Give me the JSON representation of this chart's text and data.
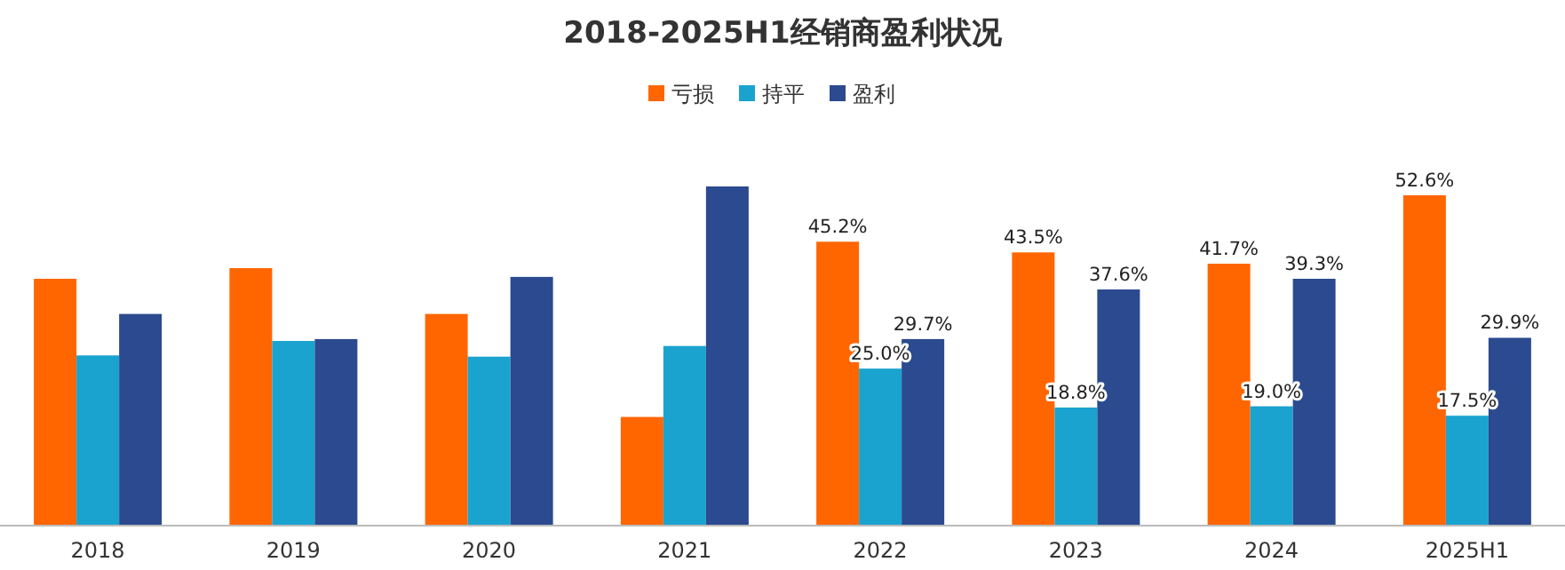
{
  "chart_data": {
    "type": "bar",
    "title": "2018-2025H1经销商盈利状况",
    "categories": [
      "2018",
      "2019",
      "2020",
      "2021",
      "2022",
      "2023",
      "2024",
      "2025H1"
    ],
    "legend": "top",
    "series": [
      {
        "name": "亏损",
        "color": "#ff6600",
        "values": [
          39.3,
          41.0,
          33.7,
          17.3,
          45.2,
          43.5,
          41.7,
          52.6
        ],
        "value_labels": [
          null,
          null,
          null,
          null,
          "45.2%",
          "43.5%",
          "41.7%",
          "52.6%"
        ]
      },
      {
        "name": "持平",
        "color": "#1ba3cf",
        "values": [
          27.1,
          29.4,
          26.9,
          28.6,
          25.0,
          18.8,
          19.0,
          17.5
        ],
        "value_labels": [
          null,
          null,
          null,
          null,
          "25.0%",
          "18.8%",
          "19.0%",
          "17.5%"
        ]
      },
      {
        "name": "盈利",
        "color": "#2b4a8f",
        "values": [
          33.7,
          29.7,
          39.6,
          54.0,
          29.7,
          37.6,
          39.3,
          29.9
        ],
        "value_labels": [
          null,
          null,
          null,
          null,
          "29.7%",
          "37.6%",
          "39.3%",
          "29.9%"
        ]
      }
    ]
  }
}
